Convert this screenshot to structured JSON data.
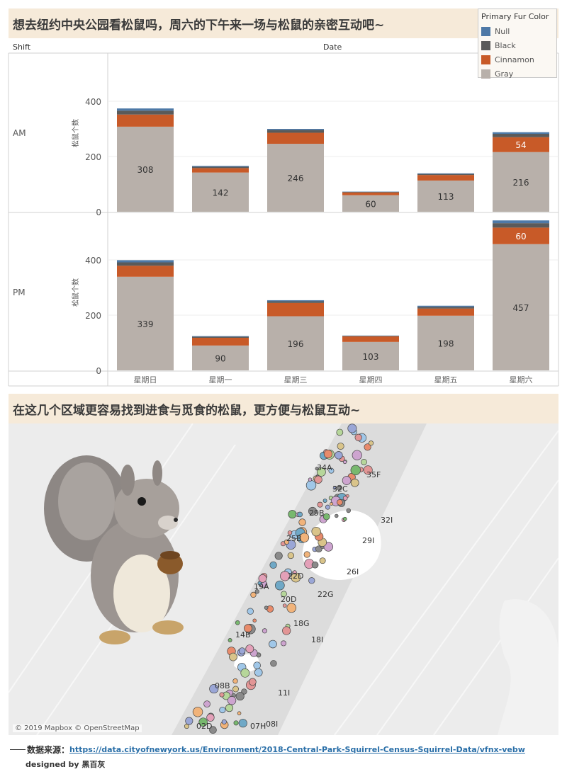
{
  "title1": "想去纽约中央公园看松鼠吗，周六的下午来一场与松鼠的亲密互动吧~",
  "title2": "在这几个区域更容易找到进食与觅食的松鼠，更方便与松鼠互动~",
  "header": {
    "shift": "Shift",
    "date": "Date"
  },
  "legend": {
    "title": "Primary Fur Color",
    "items": [
      {
        "label": "Null",
        "color": "#4e79a7"
      },
      {
        "label": "Black",
        "color": "#5a5a5a"
      },
      {
        "label": "Cinnamon",
        "color": "#c85a28"
      },
      {
        "label": "Gray",
        "color": "#b8b0aa"
      }
    ]
  },
  "chart_data": {
    "type": "bar",
    "stacked": true,
    "ylabel": "松鼠个数",
    "categories": [
      "星期日",
      "星期一",
      "星期三",
      "星期四",
      "星期五",
      "星期六"
    ],
    "ylim": [
      0,
      450
    ],
    "yticks": [
      0,
      200,
      400
    ],
    "rows": [
      {
        "shift": "AM",
        "series": [
          {
            "name": "Gray",
            "values": [
              308,
              142,
              246,
              60,
              113,
              216
            ]
          },
          {
            "name": "Cinnamon",
            "values": [
              44,
              16,
              40,
              10,
              20,
              54
            ]
          },
          {
            "name": "Black",
            "values": [
              14,
              5,
              10,
              2,
              4,
              12
            ]
          },
          {
            "name": "Null",
            "values": [
              8,
              3,
              4,
              1,
              2,
              6
            ]
          }
        ],
        "labels": [
          "308",
          "142",
          "246",
          "60",
          "113",
          "216"
        ],
        "cinnamon_label": {
          "index": 5,
          "text": "54"
        }
      },
      {
        "shift": "PM",
        "series": [
          {
            "name": "Gray",
            "values": [
              339,
              90,
              196,
              103,
              198,
              457
            ]
          },
          {
            "name": "Cinnamon",
            "values": [
              40,
              28,
              48,
              20,
              26,
              60
            ]
          },
          {
            "name": "Black",
            "values": [
              12,
              4,
              6,
              2,
              6,
              16
            ]
          },
          {
            "name": "Null",
            "values": [
              8,
              2,
              4,
              1,
              4,
              10
            ]
          }
        ],
        "labels": [
          "339",
          "90",
          "196",
          "103",
          "198",
          "457"
        ],
        "cinnamon_label": {
          "index": 5,
          "text": "60"
        }
      }
    ]
  },
  "map": {
    "copyright": "© 2019 Mapbox © OpenStreetMap",
    "hectare_labels": [
      "34A",
      "35F",
      "32C",
      "29B",
      "32I",
      "25B",
      "29I",
      "22D",
      "26I",
      "19A",
      "20D",
      "22G",
      "18G",
      "14B",
      "18I",
      "08B",
      "11I",
      "02D",
      "07H",
      "08I"
    ]
  },
  "footer": {
    "source_label": "数据来源：",
    "source_url": "https://data.cityofnewyork.us/Environment/2018-Central-Park-Squirrel-Census-Squirrel-Data/vfnx-vebw",
    "credit": "designed by 黑百灰"
  }
}
